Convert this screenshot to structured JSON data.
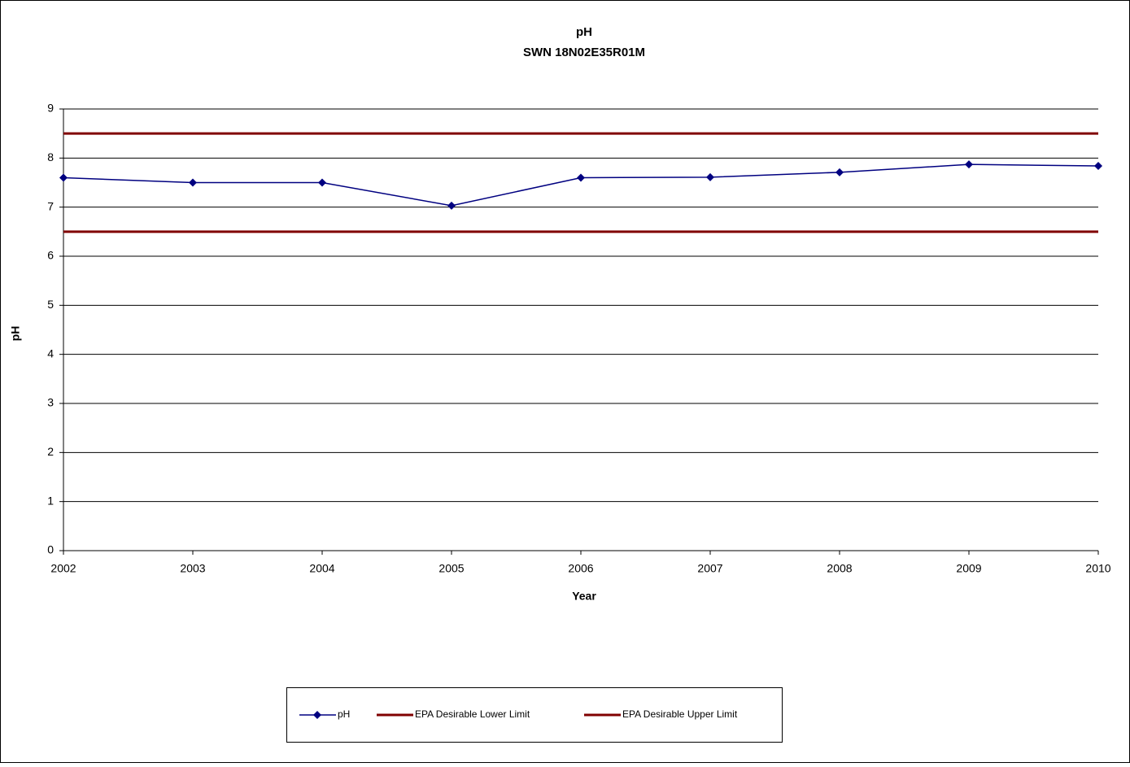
{
  "chart_data": {
    "type": "line",
    "title": "pH",
    "subtitle": "SWN 18N02E35R01M",
    "x_label": "Year",
    "y_label": "pH",
    "x": [
      2002,
      2003,
      2004,
      2005,
      2006,
      2007,
      2008,
      2009,
      2010
    ],
    "xlim": [
      2002,
      2010
    ],
    "xticks": [
      2002,
      2003,
      2004,
      2005,
      2006,
      2007,
      2008,
      2009,
      2010
    ],
    "ylim": [
      0,
      9
    ],
    "yticks": [
      0,
      1,
      2,
      3,
      4,
      5,
      6,
      7,
      8,
      9
    ],
    "grid": true,
    "legend": "bottom",
    "series": [
      {
        "name": "pH",
        "color": "#000080",
        "marker": "diamond",
        "values": [
          7.6,
          7.5,
          7.5,
          7.03,
          7.6,
          7.61,
          7.71,
          7.87,
          7.84
        ]
      },
      {
        "name": "EPA Desirable Lower Limit",
        "color": "#800000",
        "values": [
          6.5,
          6.5,
          6.5,
          6.5,
          6.5,
          6.5,
          6.5,
          6.5,
          6.5
        ]
      },
      {
        "name": "EPA Desirable Upper Limit",
        "color": "#800000",
        "values": [
          8.5,
          8.5,
          8.5,
          8.5,
          8.5,
          8.5,
          8.5,
          8.5,
          8.5
        ]
      }
    ]
  }
}
